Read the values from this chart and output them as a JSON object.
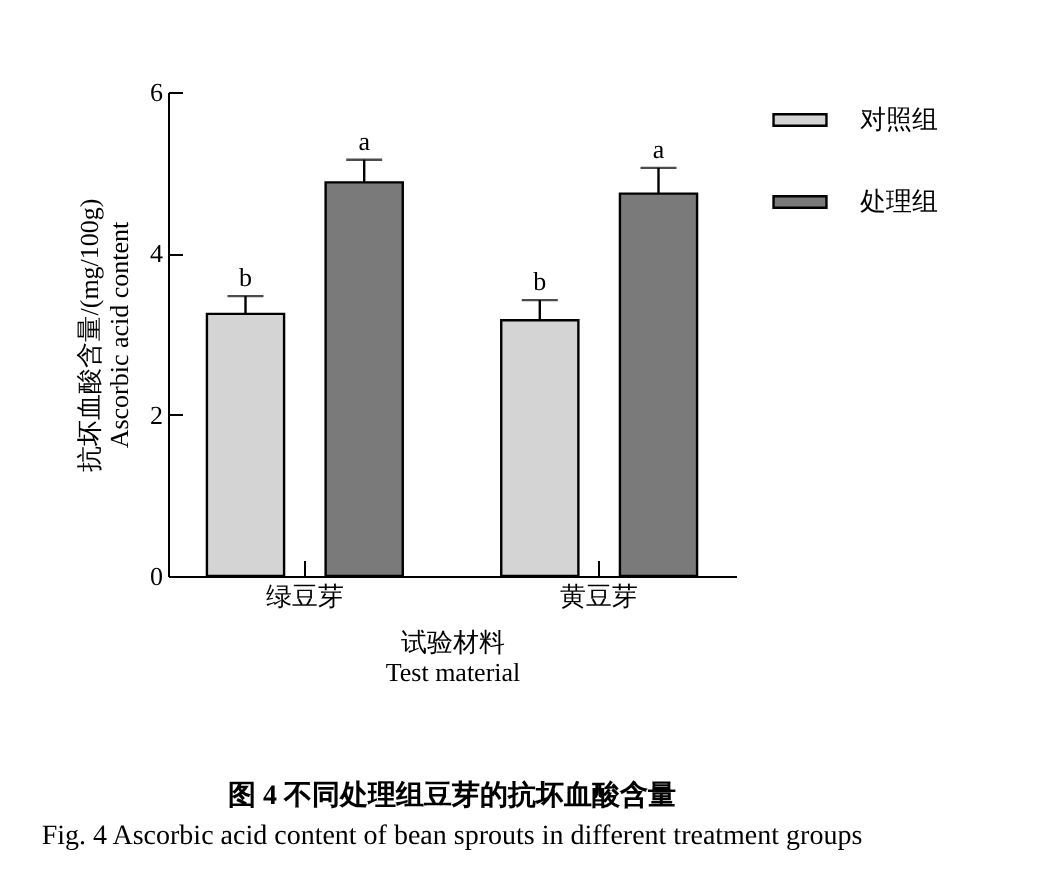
{
  "chart_data": {
    "type": "bar",
    "title": "图 4 不同处理组豆芽的抗坏血酸含量",
    "subtitle": "Fig. 4 Ascorbic acid content of bean sprouts in different treatment groups",
    "xlabel": "试验材料\nTest material",
    "ylabel": "抗坏血酸含量/(mg/100g)\nAscorbic acid content",
    "categories": [
      "绿豆芽",
      "黄豆芽"
    ],
    "series": [
      {
        "name": "对照组",
        "color": "#d4d4d4",
        "values": [
          3.25,
          3.17
        ],
        "errors": [
          [
            3.25,
            3.47
          ],
          [
            3.17,
            3.42
          ]
        ],
        "value_labels": [
          "b",
          "b"
        ]
      },
      {
        "name": "处理组",
        "color": "#7a7a7a",
        "values": [
          4.88,
          4.74
        ],
        "errors": [
          [
            4.88,
            5.16
          ],
          [
            4.74,
            5.06
          ]
        ],
        "value_labels": [
          "a",
          "a"
        ]
      }
    ],
    "ylim": [
      0,
      6
    ],
    "yticks": [
      0,
      2,
      4,
      6
    ],
    "grid": false,
    "legend": "top right"
  }
}
